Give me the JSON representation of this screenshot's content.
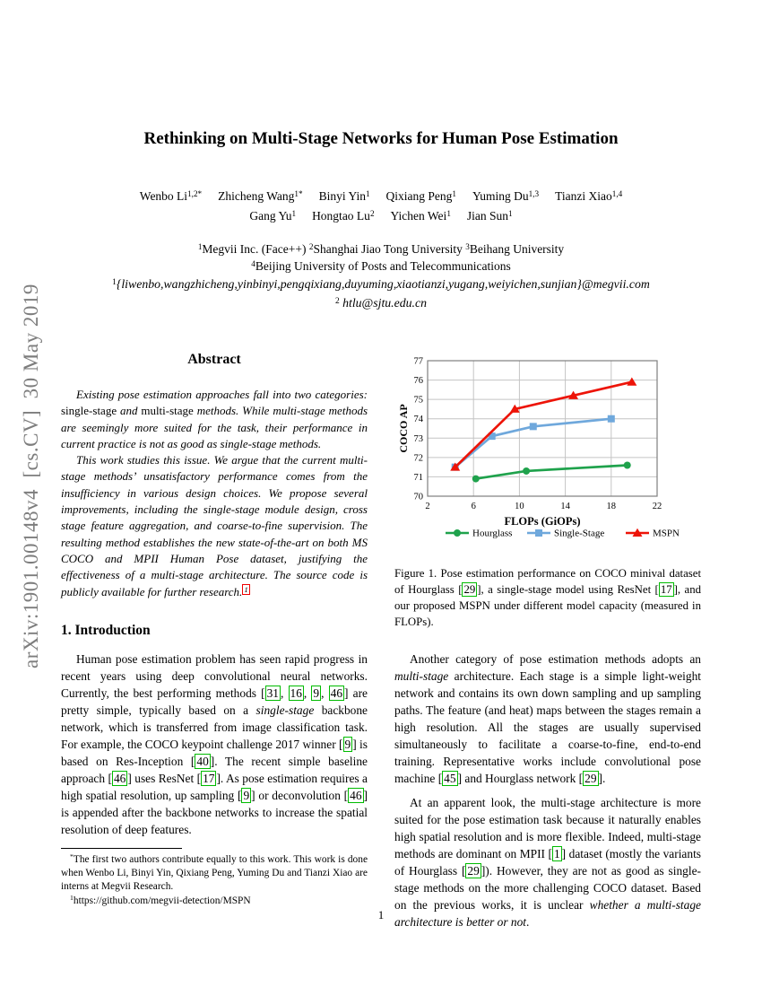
{
  "arxiv_banner": "arXiv:1901.00148v4  [cs.CV]  30 May 2019",
  "title": "Rethinking on Multi-Stage Networks for Human Pose Estimation",
  "authors": {
    "row1": [
      {
        "name": "Wenbo Li",
        "sup": "1,2*"
      },
      {
        "name": "Zhicheng Wang",
        "sup": "1*"
      },
      {
        "name": "Binyi Yin",
        "sup": "1"
      },
      {
        "name": "Qixiang Peng",
        "sup": "1"
      },
      {
        "name": "Yuming Du",
        "sup": "1,3"
      },
      {
        "name": "Tianzi Xiao",
        "sup": "1,4"
      }
    ],
    "row2": [
      {
        "name": "Gang Yu",
        "sup": "1"
      },
      {
        "name": "Hongtao Lu",
        "sup": "2"
      },
      {
        "name": "Yichen Wei",
        "sup": "1"
      },
      {
        "name": "Jian Sun",
        "sup": "1"
      }
    ]
  },
  "affiliations": {
    "line1": [
      {
        "t": "1",
        "s": "sup"
      },
      {
        "t": "Megvii Inc. (Face++) "
      },
      {
        "t": "2",
        "s": "sup"
      },
      {
        "t": "Shanghai Jiao Tong University "
      },
      {
        "t": "3",
        "s": "sup"
      },
      {
        "t": "Beihang University"
      }
    ],
    "line2": [
      {
        "t": "4",
        "s": "sup"
      },
      {
        "t": "Beijing University of Posts and Telecommunications"
      }
    ],
    "email1": [
      {
        "t": "1",
        "s": "sup"
      },
      {
        "t": "{liwenbo,wangzhicheng,yinbinyi,pengqixiang,duyuming,xiaotianzi,yugang,weiyichen,sunjian}@megvii.com",
        "s": "i"
      }
    ],
    "email2": [
      {
        "t": "2",
        "s": "sup"
      },
      {
        "t": " htlu@sjtu.edu.cn",
        "s": "i"
      }
    ]
  },
  "abstract": {
    "heading": "Abstract",
    "para1": [
      {
        "t": "Existing pose estimation approaches fall into two categories: "
      },
      {
        "t": "single-stage",
        "s": "r"
      },
      {
        "t": " and "
      },
      {
        "t": "multi-stage",
        "s": "r"
      },
      {
        "t": " methods. While multi-stage methods are seemingly more suited for the task, their performance in current practice is not as good as single-stage methods."
      }
    ],
    "para2": [
      {
        "t": "This work studies this issue. We argue that the current multi-stage methods’ unsatisfactory performance comes from the insufficiency in various design choices. We propose several improvements, including the single-stage module design, cross stage feature aggregation, and coarse-to-fine supervision. The resulting method establishes the new state-of-the-art on both MS COCO and MPII Human Pose dataset, justifying the effectiveness of a multi-stage architecture. The source code is publicly available for further research."
      },
      {
        "t": "1",
        "s": "supred"
      }
    ]
  },
  "introduction": {
    "heading": "1. Introduction",
    "para1": [
      {
        "t": "Human pose estimation problem has seen rapid progress in recent years using deep convolutional neural networks. Currently, the best performing methods ["
      },
      {
        "t": "31",
        "s": "cite"
      },
      {
        "t": ", "
      },
      {
        "t": "16",
        "s": "cite"
      },
      {
        "t": ", "
      },
      {
        "t": "9",
        "s": "cite"
      },
      {
        "t": ", "
      },
      {
        "t": "46",
        "s": "cite"
      },
      {
        "t": "] are pretty simple, typically based on a "
      },
      {
        "t": "single-stage",
        "s": "i"
      },
      {
        "t": " backbone network, which is transferred from image classification task. For example, the COCO keypoint challenge 2017 winner ["
      },
      {
        "t": "9",
        "s": "cite"
      },
      {
        "t": "] is based on Res-Inception ["
      },
      {
        "t": "40",
        "s": "cite"
      },
      {
        "t": "]. The recent simple baseline approach ["
      },
      {
        "t": "46",
        "s": "cite"
      },
      {
        "t": "] uses ResNet ["
      },
      {
        "t": "17",
        "s": "cite"
      },
      {
        "t": "]. As pose estimation requires a high spatial resolution, up sampling ["
      },
      {
        "t": "9",
        "s": "cite"
      },
      {
        "t": "] or deconvolution ["
      },
      {
        "t": "46",
        "s": "cite"
      },
      {
        "t": "] is appended after the backbone networks to increase the spatial resolution of deep features."
      }
    ]
  },
  "figure1": {
    "caption": [
      {
        "t": "Figure 1. Pose estimation performance on COCO minival dataset of Hourglass ["
      },
      {
        "t": "29",
        "s": "cite"
      },
      {
        "t": "], a single-stage model using ResNet ["
      },
      {
        "t": "17",
        "s": "cite"
      },
      {
        "t": "], and our proposed MSPN under different model capacity (measured in FLOPs)."
      }
    ]
  },
  "right_column": {
    "para1": [
      {
        "t": "Another category of pose estimation methods adopts an "
      },
      {
        "t": "multi-stage",
        "s": "i"
      },
      {
        "t": " architecture. Each stage is a simple light-weight network and contains its own down sampling and up sampling paths. The feature (and heat) maps between the stages remain a high resolution. All the stages are usually supervised simultaneously to facilitate a coarse-to-fine, end-to-end training. Representative works include convolutional pose machine ["
      },
      {
        "t": "45",
        "s": "cite"
      },
      {
        "t": "] and Hourglass network ["
      },
      {
        "t": "29",
        "s": "cite"
      },
      {
        "t": "]."
      }
    ],
    "para2": [
      {
        "t": "At an apparent look, the multi-stage architecture is more suited for the pose estimation task because it naturally enables high spatial resolution and is more flexible. Indeed, multi-stage methods are dominant on MPII ["
      },
      {
        "t": "1",
        "s": "cite"
      },
      {
        "t": "] dataset (mostly the variants of Hourglass ["
      },
      {
        "t": "29",
        "s": "cite"
      },
      {
        "t": "]). However, they are not as good as single-stage methods on the more challenging COCO dataset. Based on the previous works, it is unclear "
      },
      {
        "t": "whether a multi-stage architecture is better or not",
        "s": "i"
      },
      {
        "t": "."
      }
    ]
  },
  "footnote": {
    "line1": [
      {
        "t": "*",
        "s": "sup"
      },
      {
        "t": "The first two authors contribute equally to this work. This work is done when Wenbo Li, Binyi Yin, Qixiang Peng, Yuming Du and Tianzi Xiao are interns at Megvii Research."
      }
    ],
    "line2": [
      {
        "t": "1",
        "s": "sup"
      },
      {
        "t": "https://github.com/megvii-detection/MSPN"
      }
    ]
  },
  "page_number": "1",
  "chart_data": {
    "type": "line",
    "title": "",
    "xlabel": "FLOPs (GiOPs)",
    "ylabel": "COCO AP",
    "xlim": [
      2,
      22
    ],
    "ylim": [
      70,
      77
    ],
    "xticks": [
      2,
      6,
      10,
      14,
      18,
      22
    ],
    "yticks": [
      70,
      71,
      72,
      73,
      74,
      75,
      76,
      77
    ],
    "grid": true,
    "legend_position": "bottom",
    "colors": {
      "grid": "#c4c4c4",
      "frame": "#7f7f7f"
    },
    "series": [
      {
        "name": "Hourglass",
        "color": "#1fa24c",
        "marker": "circle",
        "points": [
          [
            6.2,
            70.9
          ],
          [
            10.6,
            71.3
          ],
          [
            19.4,
            71.6
          ]
        ]
      },
      {
        "name": "Single-Stage",
        "color": "#6fa8dc",
        "marker": "square",
        "points": [
          [
            4.4,
            71.5
          ],
          [
            7.6,
            73.1
          ],
          [
            11.2,
            73.6
          ],
          [
            18.0,
            74.0
          ]
        ]
      },
      {
        "name": "MSPN",
        "color": "#ed1408",
        "marker": "triangle",
        "points": [
          [
            4.4,
            71.5
          ],
          [
            9.6,
            74.5
          ],
          [
            14.7,
            75.2
          ],
          [
            19.8,
            75.9
          ]
        ]
      }
    ]
  }
}
